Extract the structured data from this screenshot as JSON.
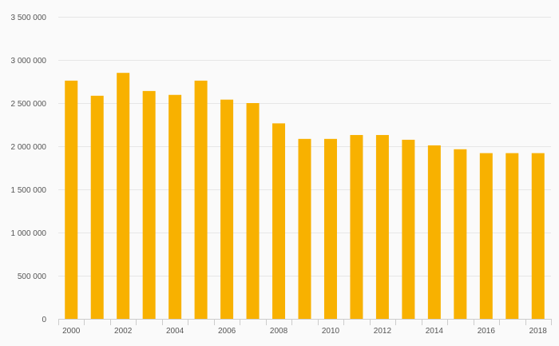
{
  "chart_data": {
    "type": "bar",
    "title": "",
    "xlabel": "",
    "ylabel": "",
    "categories": [
      "2000",
      "2001",
      "2002",
      "2003",
      "2004",
      "2005",
      "2006",
      "2007",
      "2008",
      "2009",
      "2010",
      "2011",
      "2012",
      "2013",
      "2014",
      "2015",
      "2016",
      "2017",
      "2018"
    ],
    "values": [
      2760000,
      2585000,
      2850000,
      2640000,
      2595000,
      2760000,
      2540000,
      2500000,
      2265000,
      2085000,
      2085000,
      2130000,
      2130000,
      2075000,
      2010000,
      1965000,
      1920000,
      1920000,
      1920000
    ],
    "x_tick_labels": [
      "2000",
      "",
      "2002",
      "",
      "2004",
      "",
      "2006",
      "",
      "2008",
      "",
      "2010",
      "",
      "2012",
      "",
      "2014",
      "",
      "2016",
      "",
      "2018"
    ],
    "y_ticks": [
      0,
      500000,
      1000000,
      1500000,
      2000000,
      2500000,
      3000000,
      3500000
    ],
    "y_tick_labels": [
      "0",
      "500 000",
      "1 000 000",
      "1 500 000",
      "2 000 000",
      "2 500 000",
      "3 000 000",
      "3 500 000"
    ],
    "ylim": [
      0,
      3500000
    ],
    "grid": true,
    "legend": "none",
    "colors": {
      "bar": "#f8b100",
      "grid": "#e6e6e6",
      "axis": "#cccccc",
      "background": "#fafafa"
    }
  }
}
